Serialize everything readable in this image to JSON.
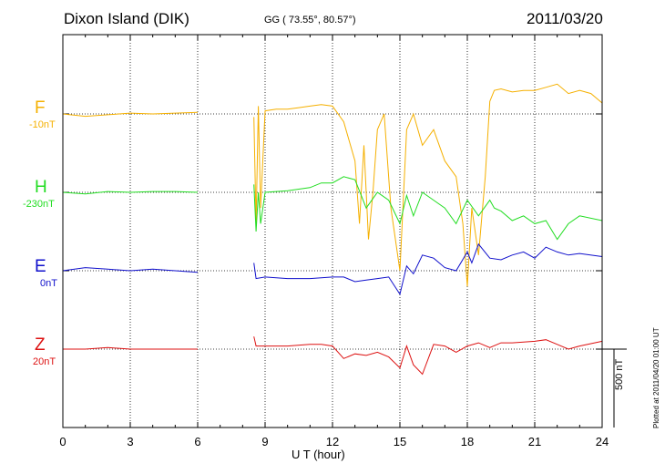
{
  "header": {
    "station": "Dixon Island (DIK)",
    "coords": "GG ( 73.55°,  80.57°)",
    "date": "2011/03/20"
  },
  "plotted_note": "Plotted at 2011/04/20 01:00 UT",
  "scale_label": "500 nT",
  "colors": {
    "F": "#f5b000",
    "H": "#22dd22",
    "E": "#1010cc",
    "Z": "#dd1111"
  },
  "chart_data": {
    "type": "line",
    "title": "Dixon Island (DIK)",
    "xlabel": "U T (hour)",
    "xlim": [
      0,
      24
    ],
    "xticks": [
      "0",
      "3",
      "6",
      "9",
      "12",
      "15",
      "18",
      "21",
      "24"
    ],
    "gridlines": true,
    "scale_bar_nT": 500,
    "data_gap_hours": [
      6.0,
      8.5
    ],
    "series": [
      {
        "name": "F",
        "baseline_label": "-10nT",
        "x": [
          0,
          1,
          2,
          3,
          4,
          5,
          6,
          8.5,
          8.6,
          8.7,
          8.8,
          9,
          9.5,
          10,
          10.5,
          11,
          11.5,
          12,
          12.5,
          13,
          13.2,
          13.4,
          13.6,
          13.8,
          14,
          14.3,
          14.6,
          15,
          15.3,
          15.6,
          16,
          16.5,
          17,
          17.5,
          17.8,
          18,
          18.2,
          18.5,
          18.8,
          19,
          19.2,
          19.5,
          20,
          20.5,
          21,
          21.5,
          22,
          22.5,
          23,
          23.5,
          24
        ],
        "values": [
          0,
          -15,
          -5,
          5,
          0,
          5,
          10,
          -20,
          -700,
          50,
          -600,
          20,
          30,
          30,
          40,
          50,
          60,
          50,
          -50,
          -300,
          -700,
          -200,
          -800,
          -500,
          -100,
          0,
          -600,
          -1000,
          -100,
          0,
          -200,
          -100,
          -300,
          -400,
          -700,
          -1100,
          -600,
          -900,
          -400,
          80,
          150,
          160,
          140,
          150,
          150,
          170,
          190,
          130,
          150,
          130,
          70
        ]
      },
      {
        "name": "H",
        "baseline_label": "-230nT",
        "x": [
          0,
          1,
          2,
          3,
          4,
          5,
          6,
          8.5,
          8.6,
          8.7,
          8.8,
          9,
          10,
          11,
          11.5,
          12,
          12.5,
          13,
          13.5,
          14,
          14.5,
          15,
          15.3,
          15.6,
          16,
          16.5,
          17,
          17.5,
          18,
          18.5,
          19,
          19.2,
          19.5,
          20,
          20.5,
          21,
          21.5,
          22,
          22.5,
          23,
          24
        ],
        "values": [
          0,
          -10,
          5,
          0,
          5,
          5,
          0,
          50,
          -250,
          0,
          -200,
          0,
          10,
          30,
          60,
          60,
          100,
          80,
          -100,
          0,
          -50,
          -200,
          -20,
          -150,
          0,
          -50,
          -100,
          -200,
          -50,
          -150,
          -50,
          -100,
          -120,
          -180,
          -150,
          -200,
          -180,
          -300,
          -200,
          -150,
          -180
        ]
      },
      {
        "name": "E",
        "baseline_label": "0nT",
        "x": [
          0,
          1,
          2,
          3,
          4,
          5,
          6,
          8.5,
          8.6,
          9,
          10,
          11,
          12,
          12.5,
          13,
          13.5,
          14,
          14.5,
          15,
          15.3,
          15.6,
          16,
          16.5,
          17,
          17.5,
          18,
          18.2,
          18.5,
          19,
          19.5,
          20,
          20.5,
          21,
          21.5,
          22,
          22.5,
          23,
          24
        ],
        "values": [
          0,
          20,
          10,
          0,
          10,
          0,
          -10,
          50,
          -50,
          -40,
          -50,
          -50,
          -40,
          -40,
          -70,
          -60,
          -50,
          -40,
          -150,
          30,
          -20,
          100,
          80,
          20,
          0,
          120,
          50,
          170,
          80,
          70,
          100,
          120,
          80,
          150,
          120,
          100,
          110,
          90
        ]
      },
      {
        "name": "Z",
        "baseline_label": "20nT",
        "x": [
          0,
          1,
          2,
          3,
          4,
          5,
          6,
          8.5,
          8.6,
          9,
          10,
          11,
          11.5,
          12,
          12.5,
          13,
          13.5,
          14,
          14.5,
          15,
          15.3,
          15.6,
          16,
          16.5,
          17,
          17.5,
          18,
          18.5,
          19,
          19.5,
          20,
          21,
          21.5,
          22,
          22.5,
          23,
          24
        ],
        "values": [
          0,
          0,
          10,
          0,
          0,
          0,
          0,
          80,
          20,
          20,
          20,
          30,
          30,
          20,
          -60,
          -30,
          -40,
          -20,
          -50,
          -120,
          20,
          -100,
          -160,
          30,
          20,
          -20,
          20,
          40,
          10,
          40,
          40,
          50,
          60,
          30,
          0,
          20,
          50
        ]
      }
    ]
  }
}
